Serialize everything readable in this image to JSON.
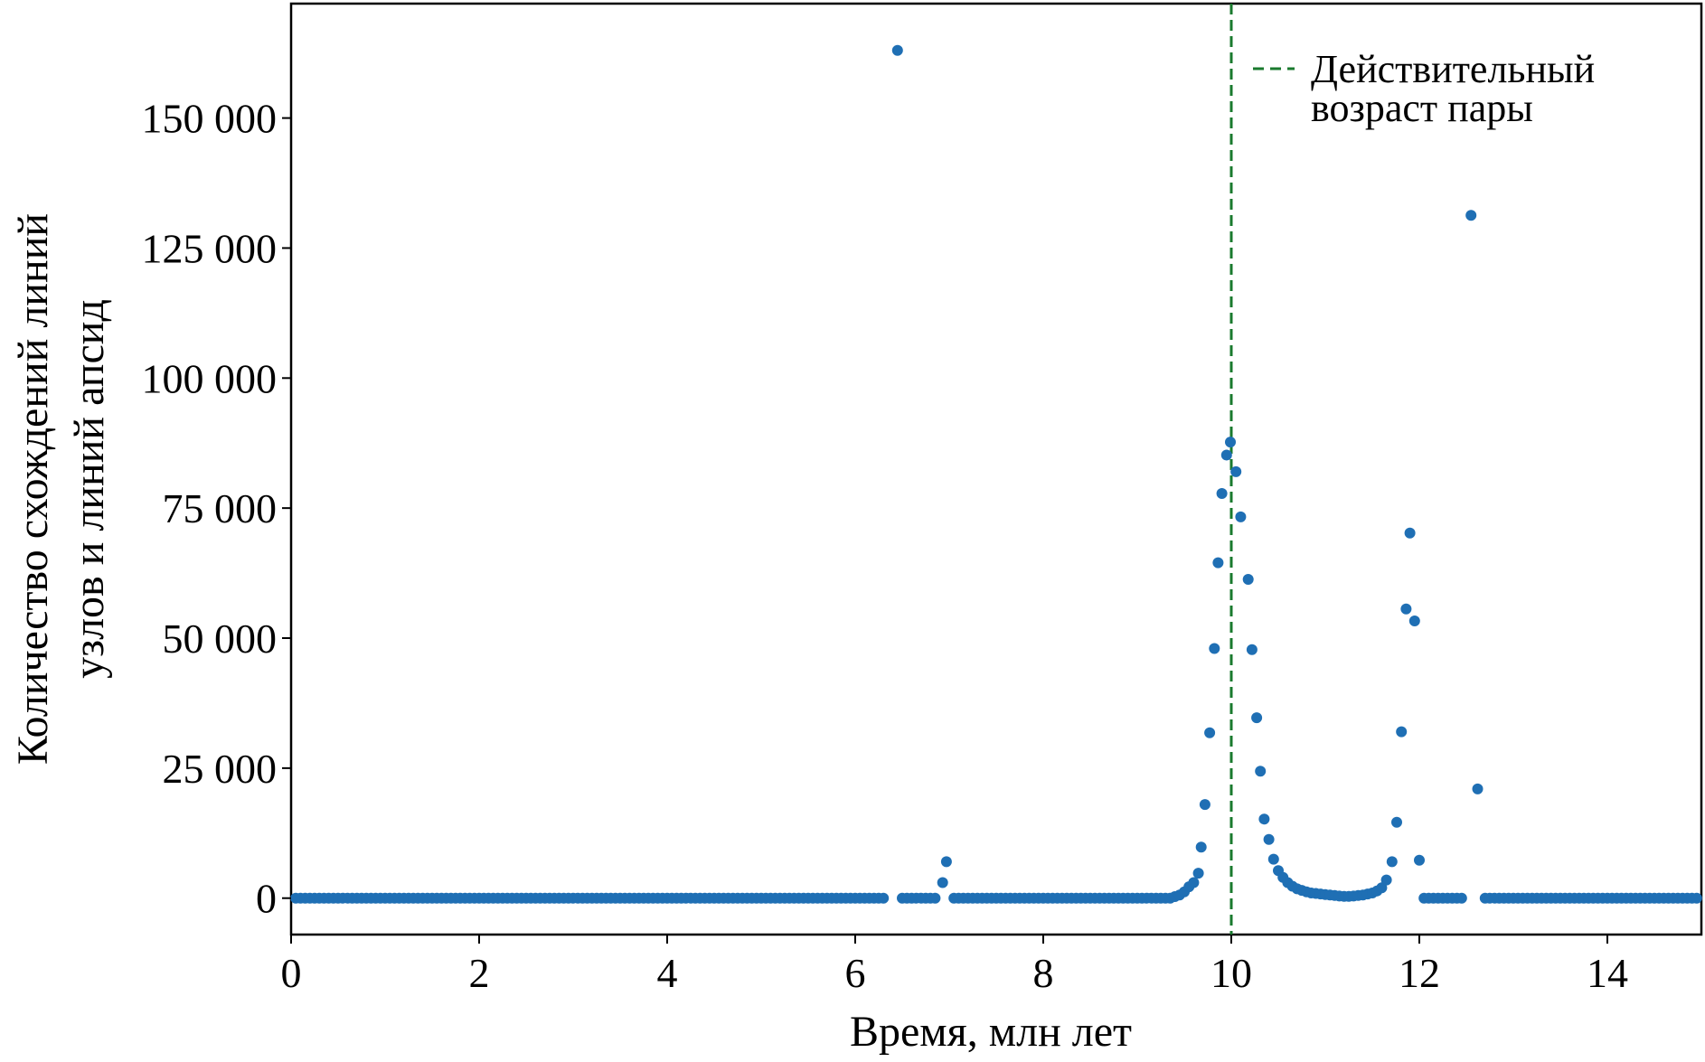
{
  "chart_data": {
    "type": "scatter",
    "xlabel": "Время, млн лет",
    "ylabel": [
      "Количество схождений линий",
      "узлов и линий апсид"
    ],
    "xlim": [
      0,
      15
    ],
    "ylim": [
      -7000,
      172000
    ],
    "xticks": [
      0,
      2,
      4,
      6,
      8,
      10,
      12,
      14
    ],
    "xtick_labels": [
      "0",
      "2",
      "4",
      "6",
      "8",
      "10",
      "12",
      "14"
    ],
    "yticks": [
      0,
      25000,
      50000,
      75000,
      100000,
      125000,
      150000
    ],
    "ytick_labels": [
      "0",
      "25 000",
      "50 000",
      "75 000",
      "100 000",
      "125 000",
      "150 000"
    ],
    "grid": false,
    "legend_position": "top-right",
    "reference_line": {
      "x": 10.0,
      "style": "dashed",
      "color": "#1a7a2e",
      "label": "Действительный возраст пары"
    },
    "legend_lines": [
      "Действительный",
      "возраст пары"
    ],
    "series": [
      {
        "color": "#1f6fb4",
        "baseline": {
          "x_start": 0.05,
          "x_end": 14.95,
          "step": 0.05,
          "y": 0,
          "skip_ranges": [
            [
              6.35,
              7.0
            ],
            [
              9.4,
              12.0
            ],
            [
              12.5,
              12.65
            ]
          ]
        },
        "points": [
          [
            6.45,
            163000
          ],
          [
            6.5,
            0
          ],
          [
            6.55,
            0
          ],
          [
            6.6,
            0
          ],
          [
            6.65,
            0
          ],
          [
            6.7,
            0
          ],
          [
            6.75,
            0
          ],
          [
            6.8,
            0
          ],
          [
            6.85,
            0
          ],
          [
            6.93,
            3000
          ],
          [
            6.97,
            7000
          ],
          [
            9.4,
            300
          ],
          [
            9.45,
            600
          ],
          [
            9.5,
            1200
          ],
          [
            9.55,
            2200
          ],
          [
            9.6,
            3000
          ],
          [
            9.65,
            4800
          ],
          [
            9.68,
            9800
          ],
          [
            9.72,
            18000
          ],
          [
            9.77,
            31800
          ],
          [
            9.82,
            48000
          ],
          [
            9.86,
            64500
          ],
          [
            9.9,
            77800
          ],
          [
            9.95,
            85200
          ],
          [
            9.99,
            87700
          ],
          [
            10.05,
            82000
          ],
          [
            10.1,
            73300
          ],
          [
            10.18,
            61300
          ],
          [
            10.22,
            47800
          ],
          [
            10.27,
            34700
          ],
          [
            10.31,
            24400
          ],
          [
            10.35,
            15200
          ],
          [
            10.4,
            11300
          ],
          [
            10.45,
            7500
          ],
          [
            10.5,
            5300
          ],
          [
            10.55,
            4000
          ],
          [
            10.6,
            3000
          ],
          [
            10.65,
            2300
          ],
          [
            10.7,
            1800
          ],
          [
            10.75,
            1500
          ],
          [
            10.8,
            1200
          ],
          [
            10.85,
            1000
          ],
          [
            10.9,
            900
          ],
          [
            10.95,
            800
          ],
          [
            11.0,
            700
          ],
          [
            11.05,
            600
          ],
          [
            11.1,
            500
          ],
          [
            11.15,
            400
          ],
          [
            11.2,
            350
          ],
          [
            11.25,
            350
          ],
          [
            11.3,
            400
          ],
          [
            11.35,
            500
          ],
          [
            11.4,
            600
          ],
          [
            11.45,
            800
          ],
          [
            11.5,
            1000
          ],
          [
            11.55,
            1400
          ],
          [
            11.6,
            2000
          ],
          [
            11.65,
            3500
          ],
          [
            11.71,
            7000
          ],
          [
            11.76,
            14600
          ],
          [
            11.81,
            32000
          ],
          [
            11.86,
            55600
          ],
          [
            11.9,
            70200
          ],
          [
            11.95,
            53300
          ],
          [
            12.0,
            7300
          ],
          [
            12.55,
            131300
          ],
          [
            12.62,
            21000
          ]
        ]
      }
    ]
  }
}
